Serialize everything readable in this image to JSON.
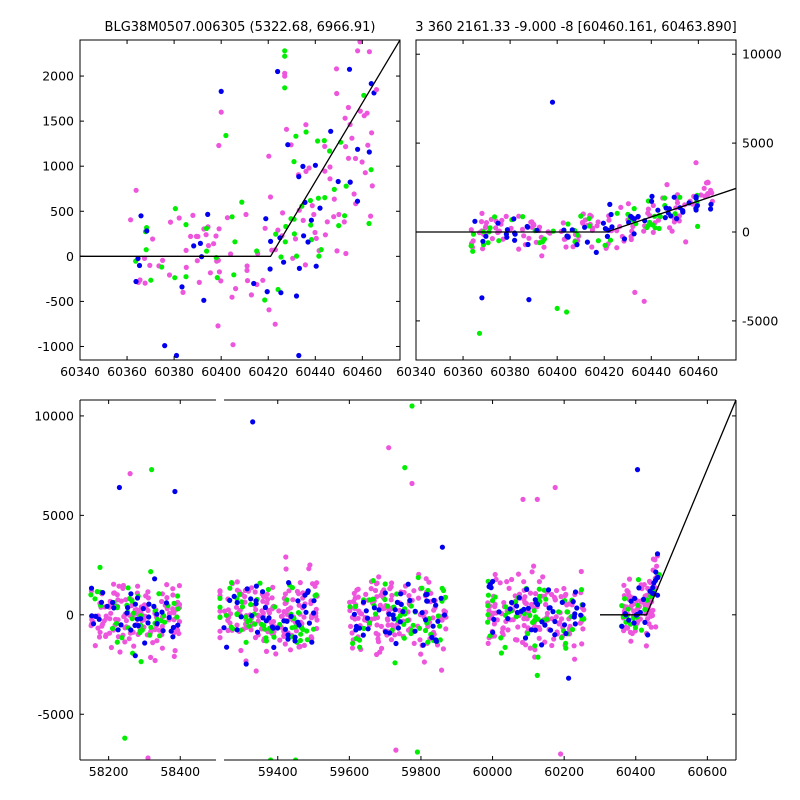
{
  "colors": {
    "background": "#ffffff",
    "axes": "#000000",
    "model_line": "#000000",
    "series_magenta": "#ee55dd",
    "series_green": "#00ee00",
    "series_blue": "#0000ee"
  },
  "chart_data": [
    {
      "type": "scatter",
      "title": "BLG38M0507.006305 (5322.68, 6966.91)",
      "xlabel": "",
      "ylabel": "",
      "xlim": [
        60340,
        60476
      ],
      "ylim": [
        -1150,
        2400
      ],
      "xticks": [
        60340,
        60360,
        60380,
        60400,
        60420,
        60440,
        60460
      ],
      "yticks": [
        -1000,
        -500,
        0,
        500,
        1000,
        1500,
        2000
      ],
      "y_axis_side": "left",
      "grid": false,
      "model_line": [
        [
          60340,
          0
        ],
        [
          60421,
          0
        ],
        [
          60476,
          2400
        ]
      ],
      "scatter_density": {
        "seed": 11,
        "x_range": [
          60360,
          60466
        ],
        "groups": [
          {
            "name": "quiescent",
            "x": [
              60360,
              60420
            ],
            "mean": 0,
            "spread": 330,
            "counts": {
              "magenta": 50,
              "green": 20,
              "blue": 14
            }
          },
          {
            "name": "rising",
            "x": [
              60420,
              60466
            ],
            "rise_start": 60420,
            "rise_end": 60466,
            "rise_to": 1200,
            "spread": 450,
            "counts": {
              "magenta": 55,
              "green": 30,
              "blue": 26
            }
          }
        ]
      },
      "series": [
        {
          "color_key": "series_magenta",
          "points": [
            [
              60399,
              1230
            ],
            [
              60400,
              1600
            ],
            [
              60458,
              2280
            ],
            [
              60459,
              2380
            ],
            [
              60463,
              2270
            ],
            [
              60449,
              2080
            ],
            [
              60427,
              2030
            ],
            [
              60427,
              2000
            ],
            [
              60466,
              1850
            ],
            [
              60436,
              1460
            ],
            [
              60444,
              1220
            ]
          ]
        },
        {
          "color_key": "series_green",
          "points": [
            [
              60427,
              2280
            ],
            [
              60427,
              2220
            ],
            [
              60427,
              1870
            ],
            [
              60402,
              1340
            ],
            [
              60441,
              1280
            ]
          ]
        },
        {
          "color_key": "series_blue",
          "points": [
            [
              60400,
              1830
            ],
            [
              60424,
              2050
            ],
            [
              60433,
              -1100
            ],
            [
              60381,
              -1100
            ],
            [
              60376,
              -990
            ]
          ]
        }
      ]
    },
    {
      "type": "scatter",
      "title": "3 360 2161.33 -9.000 -8 [60460.161, 60463.890]",
      "xlabel": "",
      "ylabel": "",
      "xlim": [
        60340,
        60476
      ],
      "ylim": [
        -7200,
        10800
      ],
      "xticks": [
        60340,
        60360,
        60380,
        60400,
        60420,
        60440,
        60460
      ],
      "yticks": [
        -5000,
        0,
        5000,
        10000
      ],
      "y_axis_side": "right",
      "grid": false,
      "model_line": [
        [
          60340,
          0
        ],
        [
          60421,
          0
        ],
        [
          60476,
          2450
        ]
      ],
      "scatter_density": {
        "seed": 23,
        "x_range": [
          60363,
          60466
        ],
        "groups": [
          {
            "name": "quiescent",
            "x": [
              60363,
              60420
            ],
            "mean": 0,
            "spread": 600,
            "counts": {
              "magenta": 70,
              "green": 25,
              "blue": 25
            }
          },
          {
            "name": "rising",
            "x": [
              60420,
              60466
            ],
            "rise_start": 60420,
            "rise_end": 60466,
            "rise_to": 1600,
            "spread": 600,
            "counts": {
              "magenta": 60,
              "green": 25,
              "blue": 35
            }
          }
        ]
      },
      "series": [
        {
          "color_key": "series_blue",
          "points": [
            [
              60398,
              7300
            ],
            [
              60368,
              -3700
            ],
            [
              60388,
              -3800
            ]
          ]
        },
        {
          "color_key": "series_green",
          "points": [
            [
              60367,
              -5700
            ],
            [
              60400,
              -4300
            ],
            [
              60404,
              -4500
            ]
          ]
        },
        {
          "color_key": "series_magenta",
          "points": [
            [
              60459,
              3900
            ],
            [
              60437,
              -3900
            ],
            [
              60433,
              -3400
            ],
            [
              60464,
              2800
            ]
          ]
        }
      ]
    },
    {
      "type": "scatter",
      "title": "",
      "xlabel": "",
      "ylabel": "",
      "xlim": [
        58120,
        60680
      ],
      "ylim": [
        -7300,
        10800
      ],
      "xticks": [
        58200,
        58400,
        59400,
        59600,
        59800,
        60000,
        60200,
        60400,
        60600
      ],
      "yticks": [
        -5000,
        0,
        5000,
        10000
      ],
      "y_axis_side": "left",
      "grid": false,
      "axis_break": [
        58500,
        59250
      ],
      "model_line": [
        [
          60300,
          0
        ],
        [
          60430,
          0
        ],
        [
          60680,
          10800
        ]
      ],
      "scatter_density": {
        "seed": 37,
        "groups": [
          {
            "name": "season-1",
            "x": [
              58150,
              58400
            ],
            "mean": 0,
            "spread": 850,
            "counts": {
              "magenta": 140,
              "green": 45,
              "blue": 40
            }
          },
          {
            "name": "season-2",
            "x": [
              59240,
              59510
            ],
            "mean": 0,
            "spread": 950,
            "counts": {
              "magenta": 150,
              "green": 55,
              "blue": 45
            }
          },
          {
            "name": "season-3",
            "x": [
              59600,
              59870
            ],
            "mean": 0,
            "spread": 950,
            "counts": {
              "magenta": 150,
              "green": 55,
              "blue": 45
            }
          },
          {
            "name": "season-4",
            "x": [
              59985,
              60255
            ],
            "mean": 0,
            "spread": 950,
            "counts": {
              "magenta": 150,
              "green": 55,
              "blue": 45
            }
          },
          {
            "name": "season-5",
            "x": [
              60360,
              60466
            ],
            "rise_start": 60420,
            "rise_end": 60466,
            "rise_to": 1800,
            "mean": 0,
            "spread": 750,
            "counts": {
              "magenta": 90,
              "green": 20,
              "blue": 25
            }
          }
        ]
      },
      "series": [
        {
          "color_key": "series_blue",
          "points": [
            [
              58230,
              6400
            ],
            [
              58385,
              6200
            ],
            [
              59330,
              9700
            ],
            [
              59860,
              3400
            ],
            [
              60405,
              7300
            ]
          ]
        },
        {
          "color_key": "series_green",
          "points": [
            [
              59775,
              10500
            ],
            [
              58320,
              7300
            ],
            [
              59755,
              7400
            ],
            [
              59380,
              -7300
            ],
            [
              59450,
              -7300
            ],
            [
              59790,
              -6900
            ],
            [
              58245,
              -6200
            ]
          ]
        },
        {
          "color_key": "series_magenta",
          "points": [
            [
              59710,
              8400
            ],
            [
              58260,
              7100
            ],
            [
              59775,
              6600
            ],
            [
              60085,
              5800
            ],
            [
              60125,
              5800
            ],
            [
              60175,
              6400
            ],
            [
              58310,
              -7200
            ],
            [
              60190,
              -7000
            ],
            [
              59730,
              -6800
            ]
          ]
        }
      ]
    }
  ]
}
